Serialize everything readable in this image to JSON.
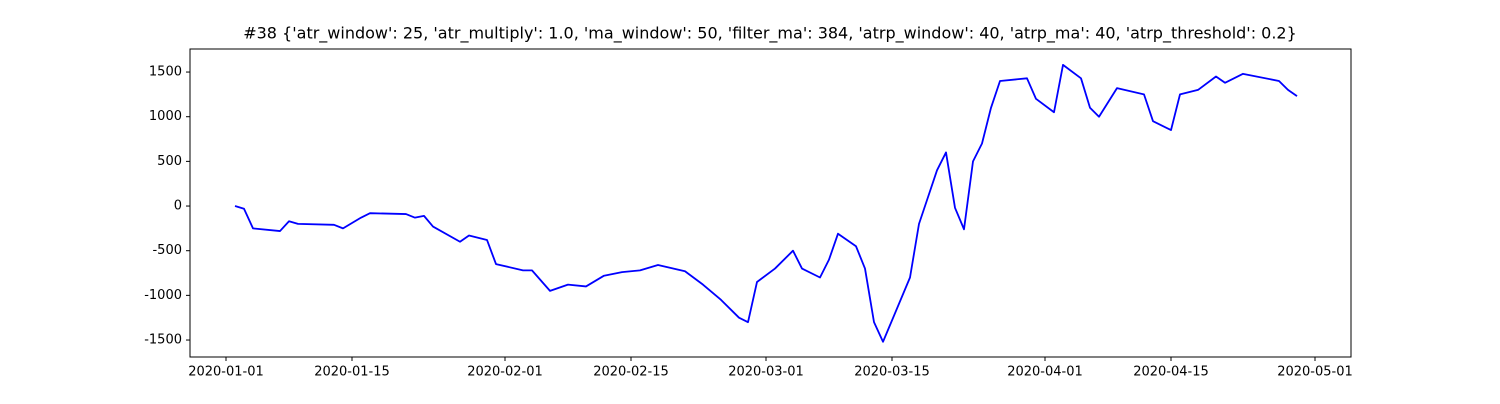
{
  "chart_data": {
    "type": "line",
    "title": "#38 {'atr_window': 25, 'atr_multiply': 1.0, 'ma_window': 50, 'filter_ma': 384, 'atrp_window': 40, 'atrp_ma': 40, 'atrp_threshold': 0.2}",
    "x": [
      "2020-01-02",
      "2020-01-03",
      "2020-01-04",
      "2020-01-07",
      "2020-01-08",
      "2020-01-09",
      "2020-01-13",
      "2020-01-14",
      "2020-01-16",
      "2020-01-17",
      "2020-01-21",
      "2020-01-22",
      "2020-01-23",
      "2020-01-24",
      "2020-01-27",
      "2020-01-28",
      "2020-01-30",
      "2020-01-31",
      "2020-02-03",
      "2020-02-04",
      "2020-02-06",
      "2020-02-08",
      "2020-02-10",
      "2020-02-12",
      "2020-02-14",
      "2020-02-16",
      "2020-02-18",
      "2020-02-21",
      "2020-02-23",
      "2020-02-25",
      "2020-02-27",
      "2020-02-28",
      "2020-02-29",
      "2020-03-02",
      "2020-03-04",
      "2020-03-05",
      "2020-03-07",
      "2020-03-08",
      "2020-03-09",
      "2020-03-11",
      "2020-03-12",
      "2020-03-13",
      "2020-03-14",
      "2020-03-17",
      "2020-03-18",
      "2020-03-19",
      "2020-03-20",
      "2020-03-21",
      "2020-03-22",
      "2020-03-23",
      "2020-03-24",
      "2020-03-25",
      "2020-03-26",
      "2020-03-27",
      "2020-03-30",
      "2020-03-31",
      "2020-04-02",
      "2020-04-03",
      "2020-04-05",
      "2020-04-06",
      "2020-04-07",
      "2020-04-09",
      "2020-04-12",
      "2020-04-13",
      "2020-04-15",
      "2020-04-16",
      "2020-04-18",
      "2020-04-20",
      "2020-04-21",
      "2020-04-23",
      "2020-04-27",
      "2020-04-28",
      "2020-04-29"
    ],
    "series": [
      {
        "color": "#0000ff",
        "values": [
          0,
          -30,
          -250,
          -280,
          -170,
          -200,
          -210,
          -250,
          -130,
          -80,
          -90,
          -130,
          -110,
          -230,
          -400,
          -330,
          -380,
          -650,
          -720,
          -720,
          -950,
          -880,
          -900,
          -780,
          -740,
          -720,
          -660,
          -730,
          -880,
          -1050,
          -1250,
          -1300,
          -850,
          -700,
          -500,
          -700,
          -800,
          -600,
          -310,
          -450,
          -700,
          -1300,
          -1520,
          -800,
          -200,
          100,
          400,
          600,
          -20,
          -260,
          500,
          700,
          1100,
          1400,
          1430,
          1200,
          1050,
          1580,
          1430,
          1100,
          1000,
          1320,
          1250,
          950,
          850,
          1250,
          1300,
          1450,
          1380,
          1480,
          1400,
          1300,
          1230
        ]
      }
    ],
    "xlim": [
      "2019-12-28",
      "2020-05-05"
    ],
    "xticks": [
      "2020-01-01",
      "2020-01-15",
      "2020-02-01",
      "2020-02-15",
      "2020-03-01",
      "2020-03-15",
      "2020-04-01",
      "2020-04-15",
      "2020-05-01"
    ],
    "ylim": [
      -1690,
      1758
    ],
    "yticks": [
      -1500,
      -1000,
      -500,
      0,
      500,
      1000,
      1500
    ]
  }
}
